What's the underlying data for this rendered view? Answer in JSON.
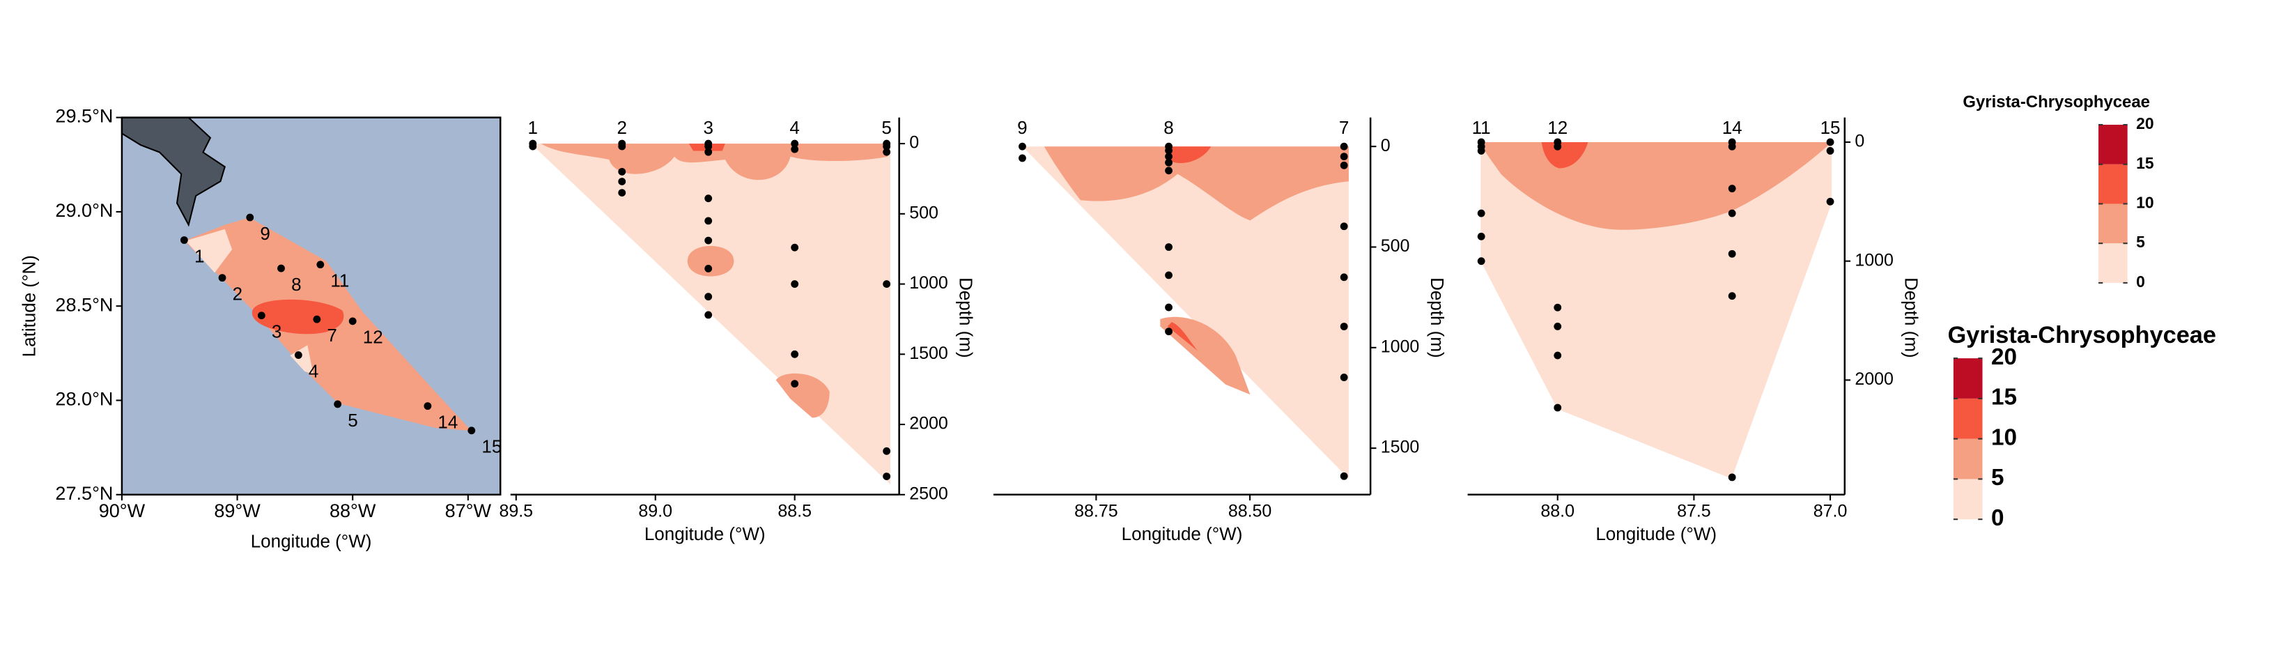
{
  "chart_data": [
    {
      "type": "map",
      "xlabel": "Longitude (°W)",
      "ylabel": "Latitude (°N)",
      "xlim": [
        90,
        86.72
      ],
      "ylim": [
        27.5,
        29.5
      ],
      "xticks": [
        {
          "value": 90,
          "label": "90°W"
        },
        {
          "value": 89,
          "label": "89°W"
        },
        {
          "value": 88,
          "label": "88°W"
        },
        {
          "value": 87,
          "label": "87°W"
        }
      ],
      "yticks": [
        {
          "value": 27.5,
          "label": "27.5°N"
        },
        {
          "value": 28,
          "label": "28.0°N"
        },
        {
          "value": 28.5,
          "label": "28.5°N"
        },
        {
          "value": 29,
          "label": "29.0°N"
        },
        {
          "value": 29.5,
          "label": "29.5°N"
        }
      ],
      "ocean_color": "#a6b8d1",
      "land_color": "#4d5660",
      "stations": [
        {
          "name": "1",
          "lon": 89.46,
          "lat": 28.85
        },
        {
          "name": "2",
          "lon": 89.13,
          "lat": 28.65
        },
        {
          "name": "3",
          "lon": 88.79,
          "lat": 28.45
        },
        {
          "name": "4",
          "lon": 88.47,
          "lat": 28.24
        },
        {
          "name": "5",
          "lon": 88.13,
          "lat": 27.98
        },
        {
          "name": "7",
          "lon": 88.31,
          "lat": 28.43
        },
        {
          "name": "8",
          "lon": 88.62,
          "lat": 28.7
        },
        {
          "name": "9",
          "lon": 88.89,
          "lat": 28.97
        },
        {
          "name": "11",
          "lon": 88.28,
          "lat": 28.72
        },
        {
          "name": "12",
          "lon": 88.0,
          "lat": 28.42
        },
        {
          "name": "14",
          "lon": 87.35,
          "lat": 27.97
        },
        {
          "name": "15",
          "lon": 86.97,
          "lat": 27.84
        }
      ]
    },
    {
      "type": "contour",
      "xlabel": "Longitude (°W)",
      "ylabel": "Depth (m)",
      "xlim": [
        89.52,
        88.125
      ],
      "ylim": [
        2500,
        -186
      ],
      "xticks": [
        89.5,
        {
          "value": 89,
          "label": "89.0"
        },
        88.5
      ],
      "yticks": [
        0,
        500,
        1000,
        1500,
        2000,
        2500
      ],
      "stations": [
        {
          "name": "1",
          "x": 89.44,
          "depths": [
            0,
            20
          ]
        },
        {
          "name": "2",
          "x": 89.12,
          "depths": [
            0,
            20,
            200,
            270,
            350
          ]
        },
        {
          "name": "3",
          "x": 88.81,
          "depths": [
            0,
            20,
            60,
            390,
            550,
            690,
            890,
            1090,
            1220
          ]
        },
        {
          "name": "4",
          "x": 88.5,
          "depths": [
            0,
            40,
            740,
            1000,
            1500,
            1710
          ]
        },
        {
          "name": "5",
          "x": 88.17,
          "depths": [
            0,
            20,
            60,
            1000,
            2190,
            2370
          ]
        }
      ]
    },
    {
      "type": "contour",
      "xlabel": "Longitude (°W)",
      "ylabel": "Depth (m)",
      "xlim": [
        88.917,
        88.304
      ],
      "ylim": [
        1731,
        -144
      ],
      "xticks": [
        88.75,
        {
          "value": 88.5,
          "label": "88.50"
        }
      ],
      "yticks": [
        0,
        500,
        1000,
        1500
      ],
      "stations": [
        {
          "name": "9",
          "x": 88.87,
          "depths": [
            0,
            58
          ]
        },
        {
          "name": "8",
          "x": 88.632,
          "depths": [
            0,
            20,
            50,
            80,
            120,
            500,
            640,
            800,
            920
          ]
        },
        {
          "name": "7",
          "x": 88.347,
          "depths": [
            0,
            50,
            94,
            397,
            650,
            895,
            1148,
            1639
          ]
        }
      ]
    },
    {
      "type": "contour",
      "xlabel": "Longitude (°W)",
      "ylabel": "Depth (m)",
      "xlim": [
        88.33,
        86.947
      ],
      "ylim": [
        2963,
        -207
      ],
      "xticks": [
        {
          "value": 88,
          "label": "88.0"
        },
        87.5,
        {
          "value": 87,
          "label": "87.0"
        }
      ],
      "yticks": [
        0,
        1000,
        2000
      ],
      "stations": [
        {
          "name": "11",
          "x": 88.28,
          "depths": [
            0,
            37,
            73,
            598,
            793,
            1000
          ]
        },
        {
          "name": "12",
          "x": 88.0,
          "depths": [
            0,
            37,
            1390,
            1549,
            1793,
            2232
          ]
        },
        {
          "name": "14",
          "x": 87.36,
          "depths": [
            0,
            37,
            390,
            598,
            939,
            1293,
            2817
          ]
        },
        {
          "name": "15",
          "x": 87.0,
          "depths": [
            0,
            73,
            500
          ]
        }
      ]
    }
  ],
  "legends": [
    {
      "title": "Gyrista-Chrysophyceae",
      "levels": [
        0,
        5,
        10,
        15,
        20
      ],
      "colors": [
        "#fde0d2",
        "#f6a083",
        "#f5573f",
        "#bd0d24"
      ]
    },
    {
      "title": "Gyrista-Chrysophyceae",
      "levels": [
        0,
        5,
        10,
        15,
        20
      ],
      "colors": [
        "#fde0d2",
        "#f6a083",
        "#f5573f",
        "#bd0d24"
      ]
    }
  ]
}
